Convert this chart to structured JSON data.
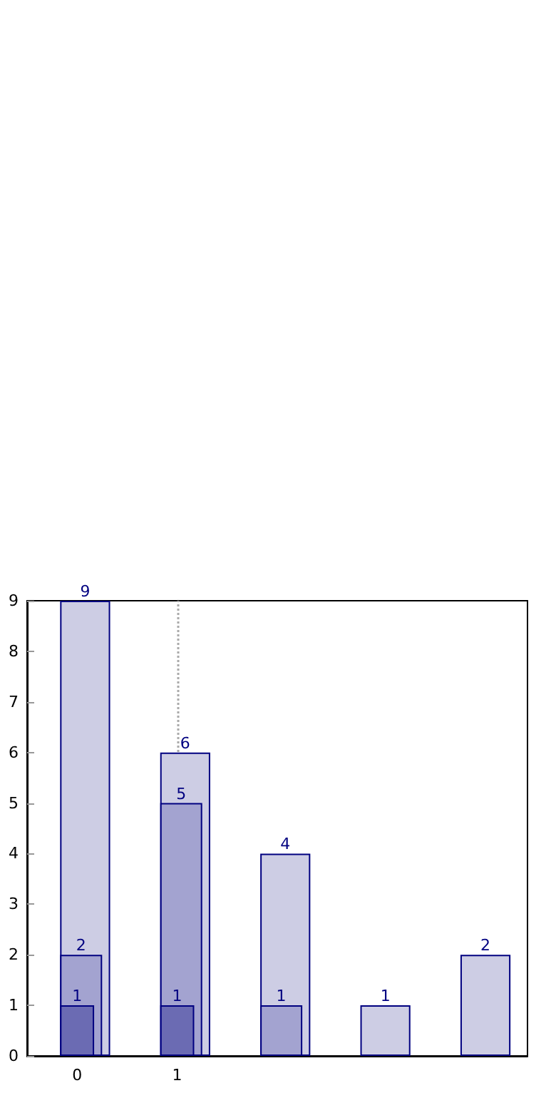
{
  "chart_data": {
    "type": "bar",
    "categories": [
      "0",
      "1",
      null,
      null,
      null
    ],
    "series": [
      {
        "color": "#cdcde4",
        "values": [
          9,
          6,
          4,
          1,
          2
        ]
      },
      {
        "color": "#a3a3d0",
        "values": [
          2,
          5,
          1,
          null,
          null
        ]
      },
      {
        "color": "#6b6bb3",
        "values": [
          1,
          1,
          null,
          null,
          null
        ]
      }
    ],
    "ylim": [
      0,
      9
    ],
    "yticks": [
      0,
      1,
      2,
      3,
      4,
      5,
      6,
      7,
      8,
      9
    ],
    "grid": "x",
    "data_labels": true
  }
}
